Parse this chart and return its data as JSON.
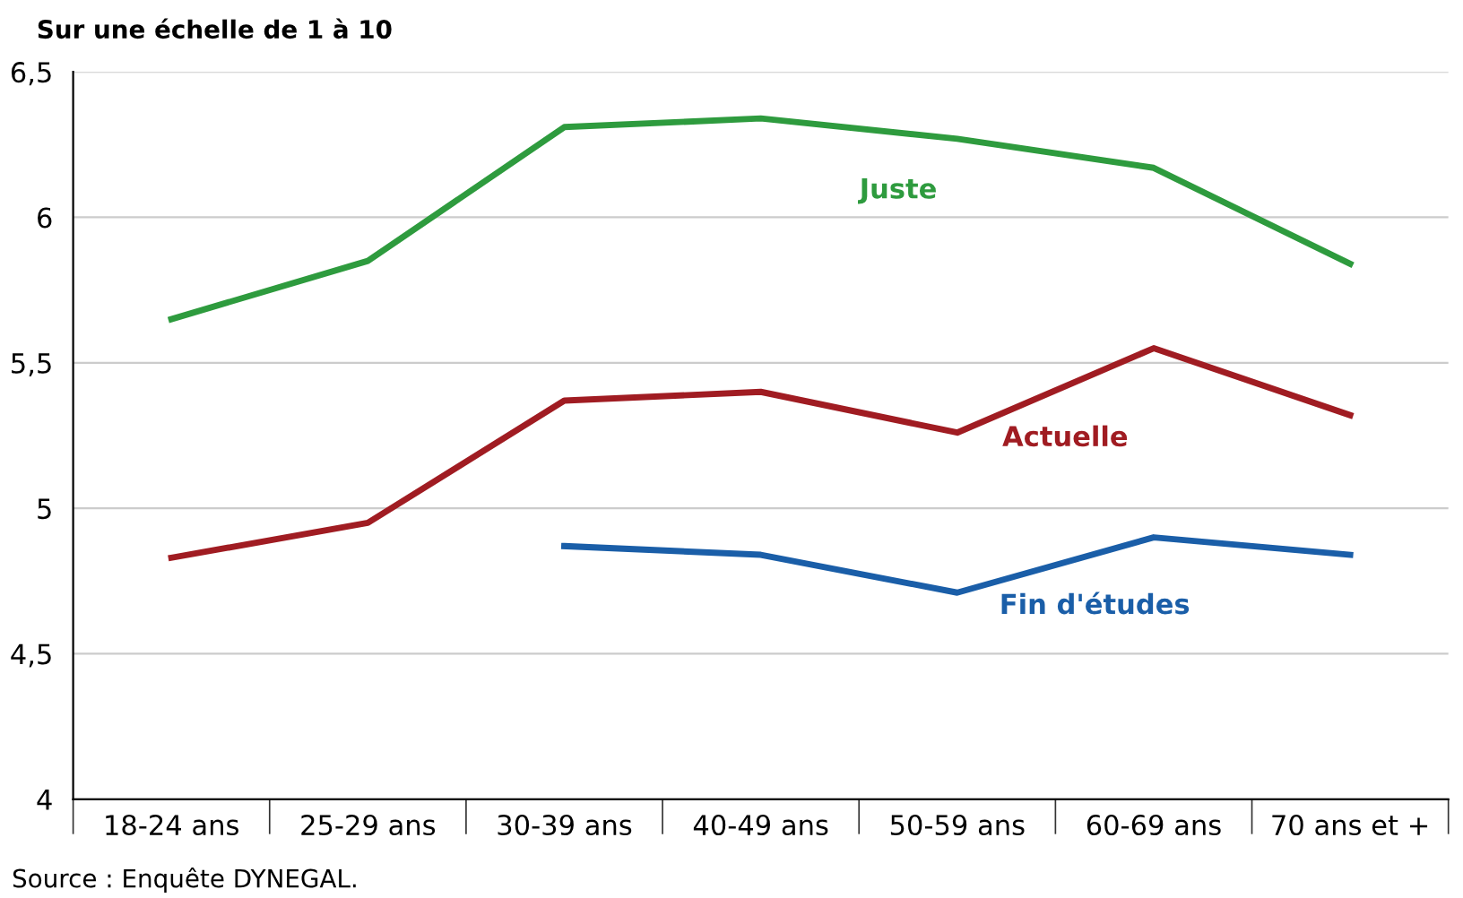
{
  "chart_data": {
    "type": "line",
    "title": "Sur une échelle de 1 à 10",
    "categories": [
      "18-24 ans",
      "25-29 ans",
      "30-39 ans",
      "40-49 ans",
      "50-59 ans",
      "60-69 ans",
      "70 ans et +"
    ],
    "series": [
      {
        "name": "Juste",
        "color": "#2e9b3e",
        "values": [
          5.65,
          5.85,
          6.31,
          6.34,
          6.27,
          6.17,
          5.84
        ]
      },
      {
        "name": "Actuelle",
        "color": "#a01c22",
        "values": [
          4.83,
          4.95,
          5.37,
          5.4,
          5.26,
          5.55,
          5.32
        ]
      },
      {
        "name": "Fin d'études",
        "color": "#1a5ea8",
        "values": [
          null,
          null,
          4.87,
          4.84,
          4.71,
          4.9,
          4.84
        ]
      }
    ],
    "ylim": [
      4,
      6.5
    ],
    "yticks": [
      4,
      {
        "value": 4.5,
        "label": "4,5"
      },
      5,
      {
        "value": 5.5,
        "label": "5,5"
      },
      6,
      {
        "value": 6.5,
        "label": "6,5"
      }
    ],
    "grid": "y",
    "marker": "none",
    "line_style": "solid",
    "legend": false,
    "annotations": [
      "Source : Enquête DYNEGAL."
    ]
  }
}
